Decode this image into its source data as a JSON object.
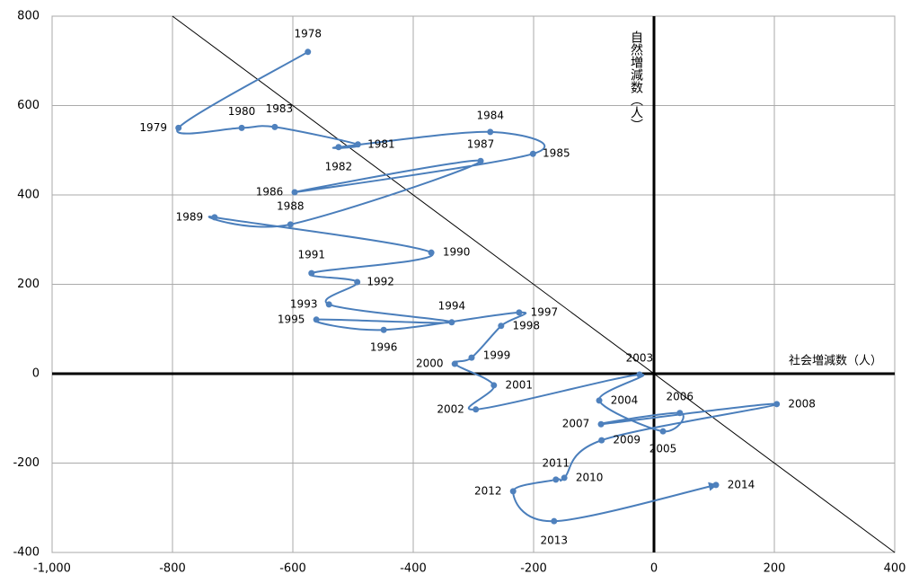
{
  "chart_data": {
    "type": "scatter",
    "connect": true,
    "smooth": true,
    "end_arrow": true,
    "x_axis_label": "社会増減数（人）",
    "y_axis_label": "自然増減数（人）",
    "color": "#4a7ebb",
    "grid": true,
    "negative_tick_color": "#ff0000",
    "xlim": [
      -1000,
      400
    ],
    "ylim": [
      -400,
      800
    ],
    "xticks": [
      {
        "value": -1000,
        "label": "-1,000"
      },
      -800,
      -600,
      -400,
      -200,
      0,
      200,
      400
    ],
    "yticks": [
      -400,
      -200,
      0,
      200,
      400,
      600,
      800
    ],
    "labels": [
      "1978",
      "1979",
      "1980",
      "1983",
      "1981",
      "1982",
      "1984",
      "1985",
      "1986",
      "1987",
      "1988",
      "1989",
      "1990",
      "1991",
      "1992",
      "1993",
      "1994",
      "1995",
      "1996",
      "1997",
      "1998",
      "1999",
      "2000",
      "2001",
      "2002",
      "2003",
      "2004",
      "2005",
      "2006",
      "2007",
      "2008",
      "2009",
      "2010",
      "2011",
      "2012",
      "2013",
      "2014"
    ],
    "x": [
      -575,
      -790,
      -685,
      -630,
      -492,
      -524,
      -272,
      -201,
      -597,
      -288,
      -604,
      -730,
      -370,
      -569,
      -493,
      -540,
      -336,
      -561,
      -449,
      -224,
      -254,
      -303,
      -331,
      -266,
      -296,
      -24,
      -91,
      15,
      43,
      -88,
      204,
      -87,
      -149,
      -163,
      -234,
      -166,
      103
    ],
    "y": [
      720,
      550,
      550,
      552,
      513,
      507,
      541,
      492,
      406,
      476,
      334,
      350,
      271,
      225,
      205,
      155,
      115,
      121,
      98,
      137,
      107,
      36,
      22,
      -26,
      -80,
      -2,
      -60,
      -129,
      -88,
      -113,
      -68,
      -149,
      -233,
      -237,
      -263,
      -330,
      -249
    ]
  }
}
